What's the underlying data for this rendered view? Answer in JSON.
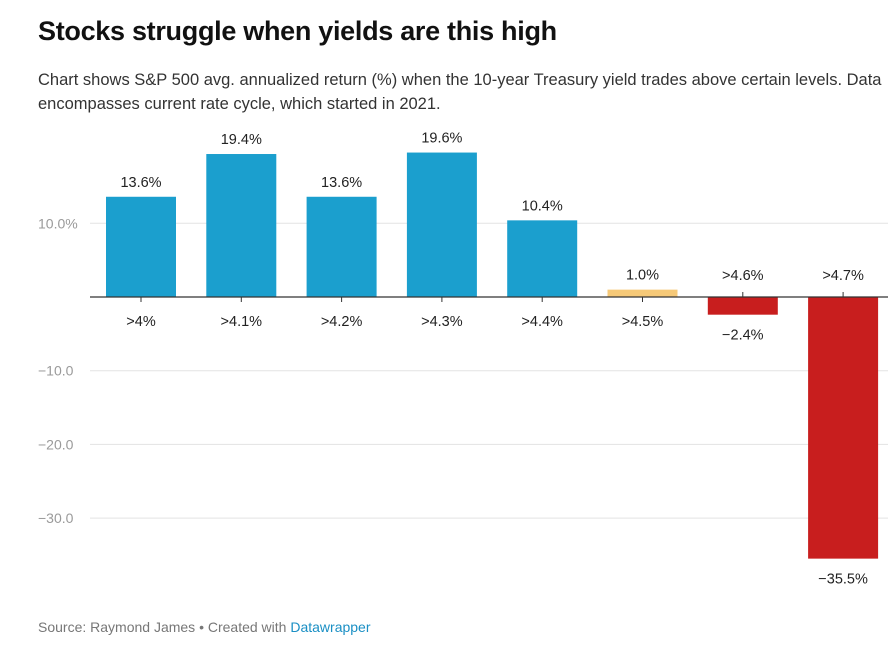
{
  "header": {
    "title": "Stocks struggle when yields are this high",
    "subtitle": "Chart shows S&P 500 avg. annualized return (%) when the 10-year Treasury yield trades above certain levels. Data encompasses current rate cycle, which started in 2021."
  },
  "footer": {
    "source": "Source: Raymond James • Created with ",
    "brand": "Datawrapper"
  },
  "chart_data": {
    "type": "bar",
    "categories": [
      ">4%",
      ">4.1%",
      ">4.2%",
      ">4.3%",
      ">4.4%",
      ">4.5%",
      ">4.6%",
      ">4.7%"
    ],
    "values": [
      13.6,
      19.4,
      13.6,
      19.6,
      10.4,
      1.0,
      -2.4,
      -35.5
    ],
    "value_labels": [
      "13.6%",
      "19.4%",
      "13.6%",
      "19.6%",
      "10.4%",
      "1.0%",
      "−2.4%",
      "−35.5%"
    ],
    "colors": [
      "#1b9fce",
      "#1b9fce",
      "#1b9fce",
      "#1b9fce",
      "#1b9fce",
      "#f6c978",
      "#c81e1e",
      "#c81e1e"
    ],
    "yticks": [
      10,
      -10,
      -20,
      -30
    ],
    "ytick_labels": [
      "10.0%",
      "−10.0",
      "−20.0",
      "−30.0"
    ],
    "ylim": [
      -37,
      21
    ],
    "grid": true,
    "xlabel": "",
    "ylabel": ""
  }
}
